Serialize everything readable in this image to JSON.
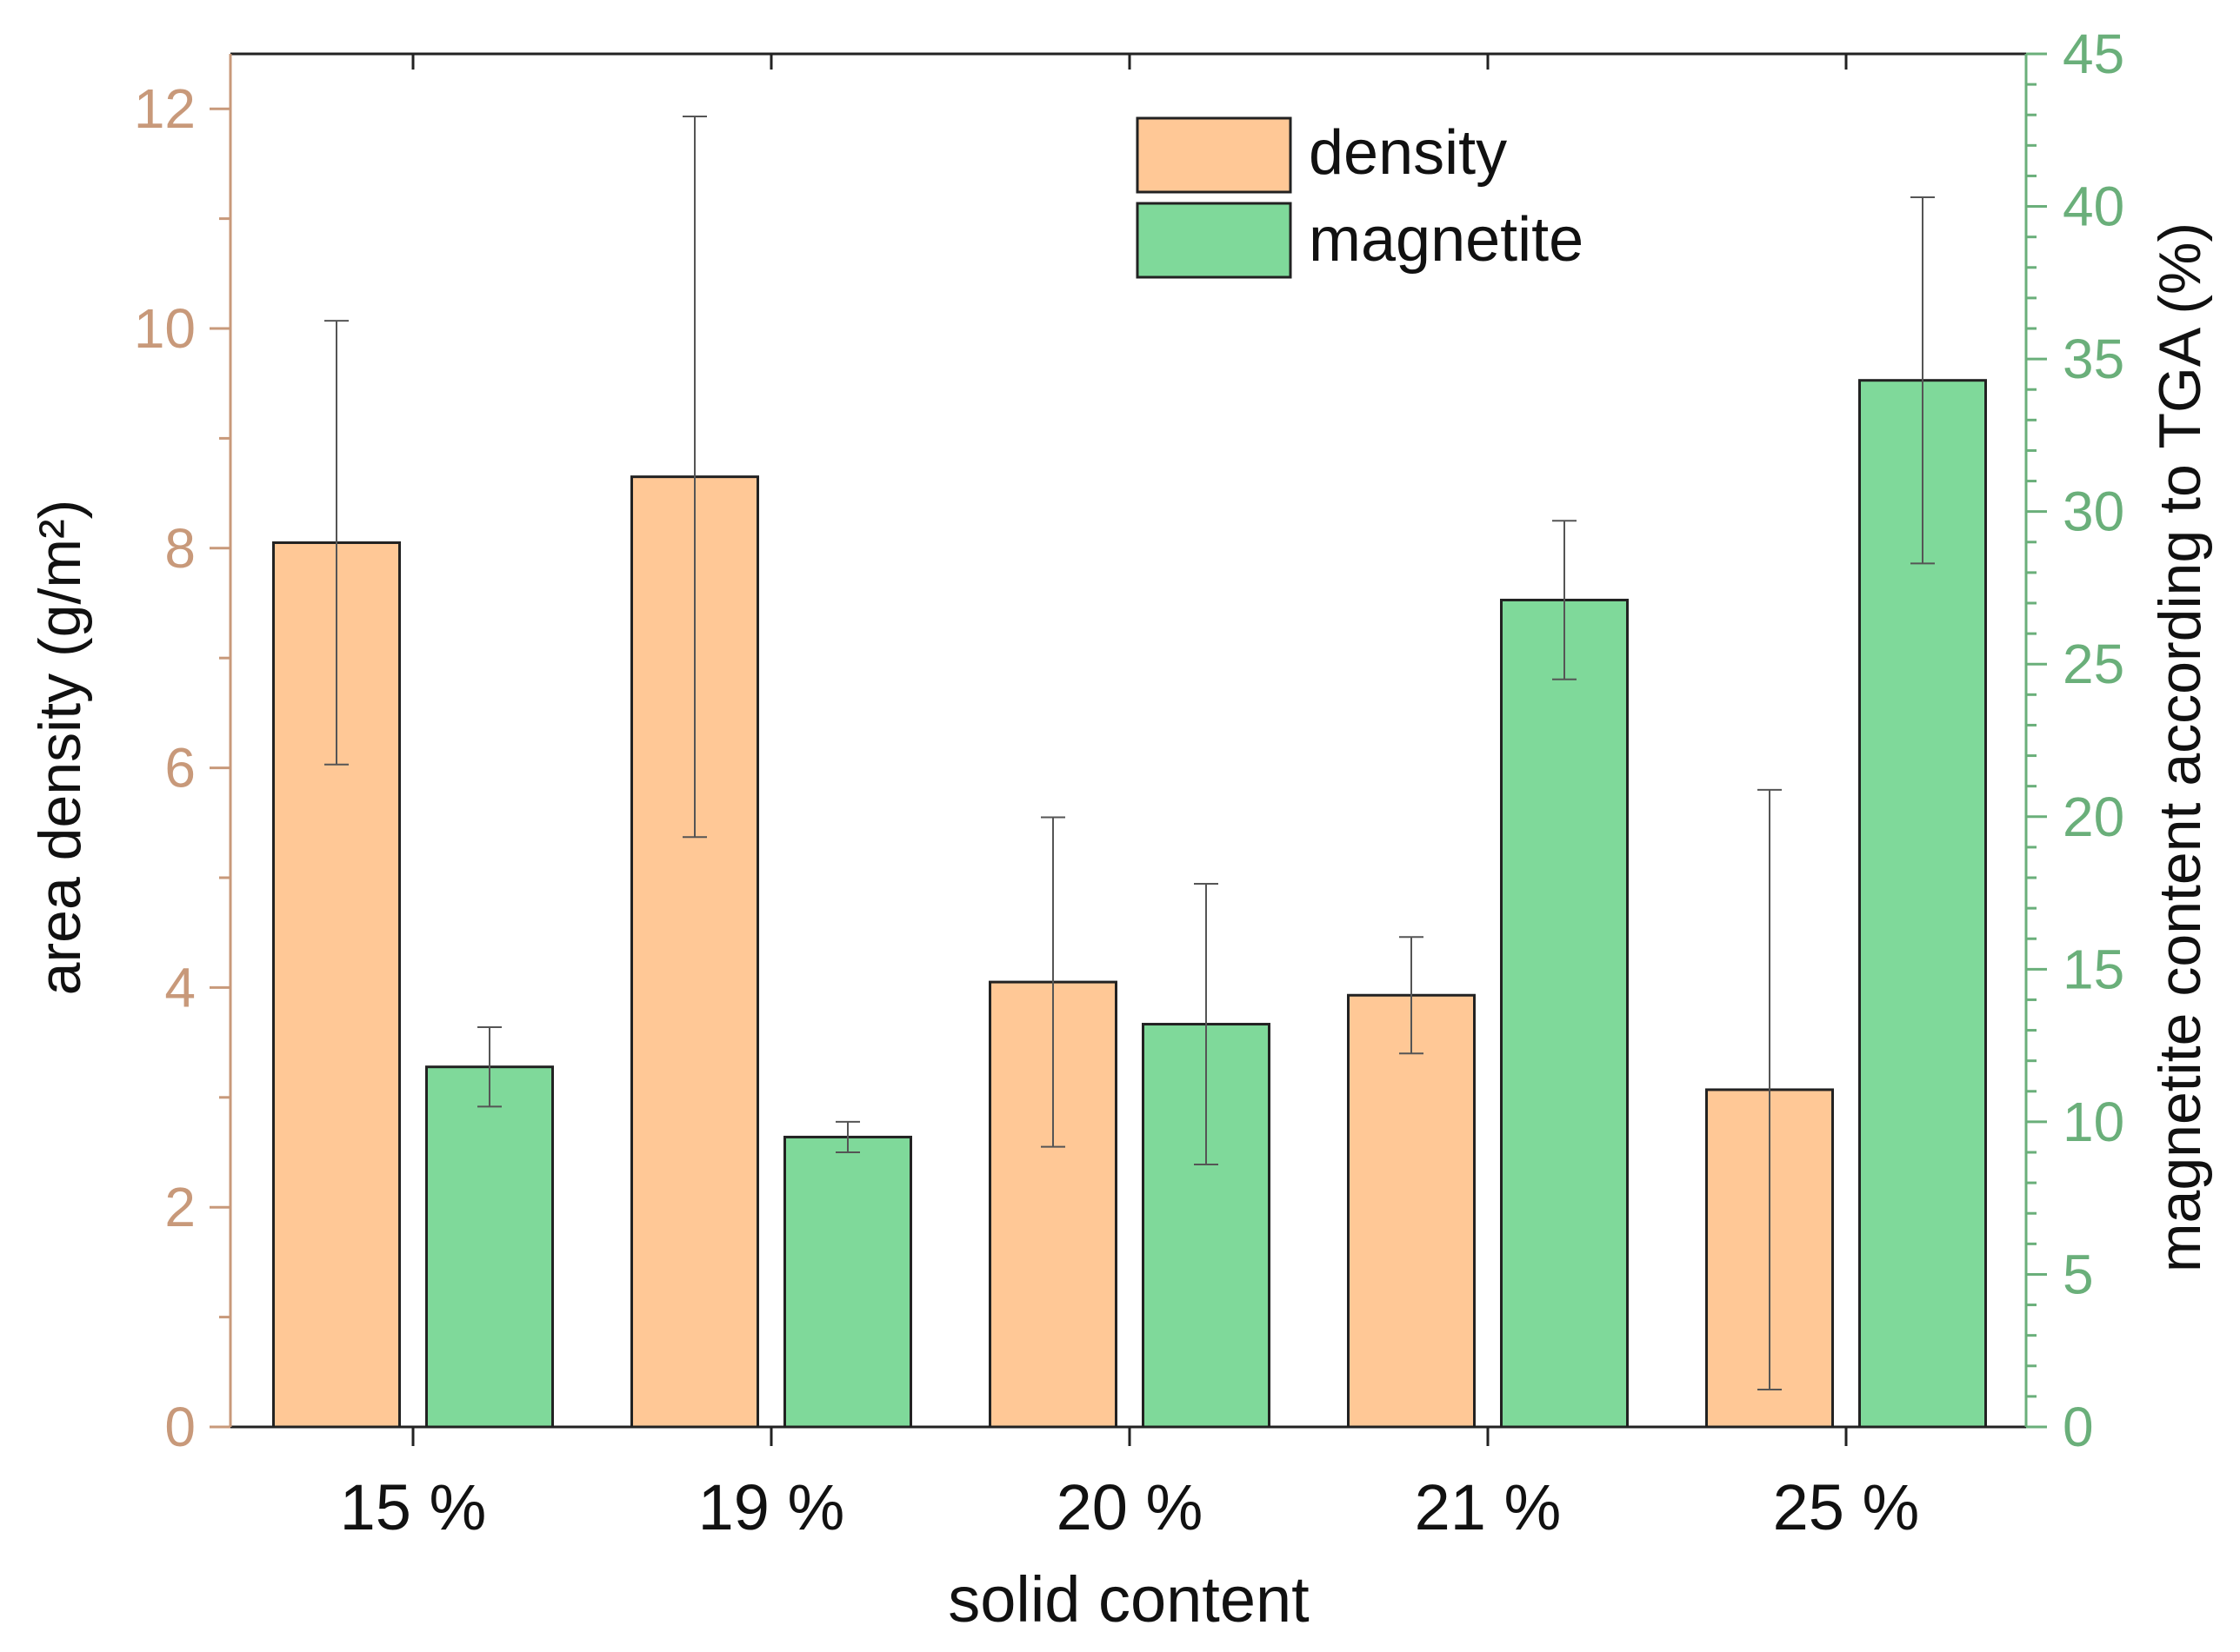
{
  "chart_data": {
    "type": "bar",
    "categories": [
      "15 %",
      "19 %",
      "20 %",
      "21 %",
      "25 %"
    ],
    "xlabel": "solid content",
    "ylabel_left": "area density (g/m²)",
    "ylabel_right": "magnetite content according to TGA (%)",
    "y_left": {
      "range": [
        0,
        12.5
      ],
      "major_ticks": [
        0,
        2,
        4,
        6,
        8,
        10,
        12
      ],
      "minor_step": 1
    },
    "y_right": {
      "range": [
        0,
        45
      ],
      "major_ticks": [
        0,
        5,
        10,
        15,
        20,
        25,
        30,
        35,
        40,
        45
      ],
      "minor_step": 1
    },
    "series": [
      {
        "name": "density",
        "axis": "left",
        "color": "#FFC896",
        "values": [
          8.05,
          8.65,
          4.05,
          3.93,
          3.07
        ],
        "errors": [
          2.02,
          3.28,
          1.5,
          0.53,
          2.73
        ]
      },
      {
        "name": "magnetite",
        "axis": "right",
        "color": "#7FD99A",
        "values": [
          11.8,
          9.5,
          13.2,
          27.1,
          34.3
        ],
        "errors": [
          1.3,
          0.5,
          4.6,
          2.6,
          6.0
        ]
      }
    ],
    "legend": {
      "position": "top-center",
      "entries": [
        "density",
        "magnetite"
      ]
    },
    "colors": {
      "left_axis": "#C8997A",
      "right_axis": "#6AAF7A",
      "bar_outline": "#222222",
      "error_bar": "#555555"
    },
    "grid": false
  }
}
